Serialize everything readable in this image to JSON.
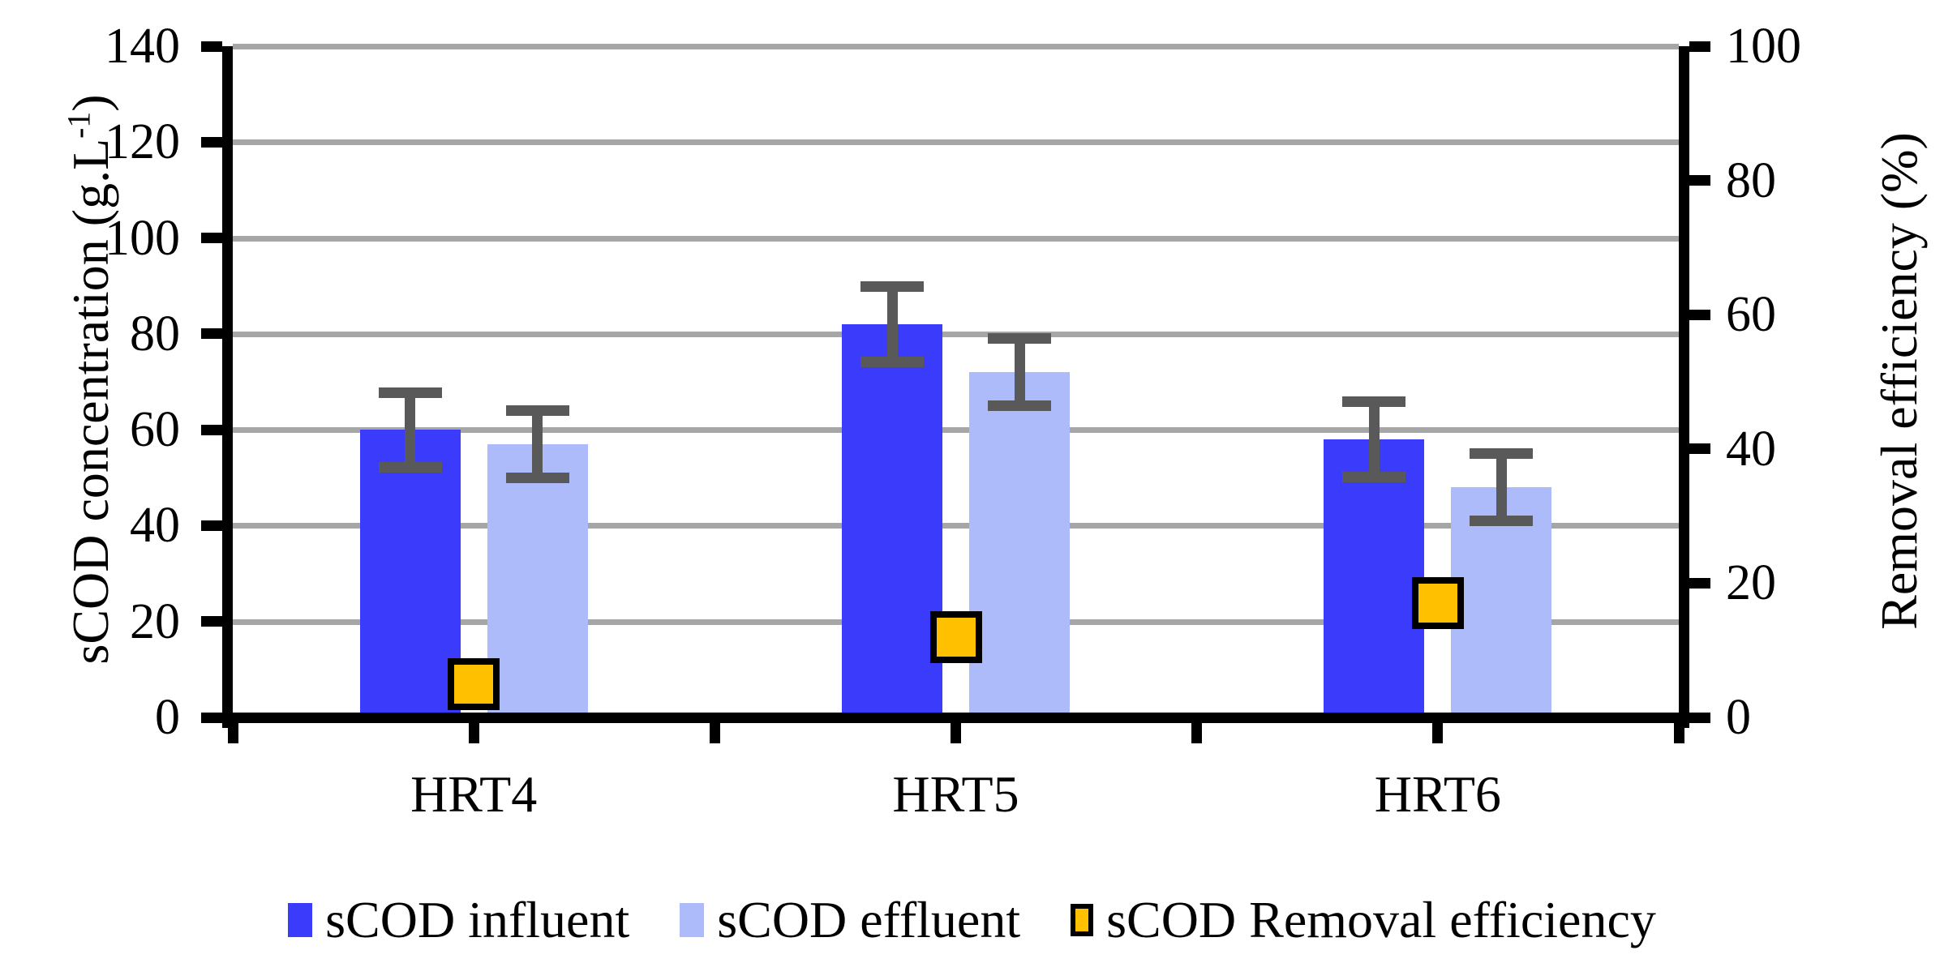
{
  "chart_data": {
    "type": "bar",
    "title": "",
    "categories": [
      "HRT4",
      "HRT5",
      "HRT6"
    ],
    "series": [
      {
        "name": "sCOD influent",
        "render": "bar",
        "axis": "left",
        "color": "#3B3BFB",
        "values": [
          60,
          82,
          58
        ],
        "error": [
          7.8,
          7.8,
          7.8
        ]
      },
      {
        "name": "sCOD effluent",
        "render": "bar",
        "axis": "left",
        "color": "#AEBBFA",
        "values": [
          57,
          72,
          48
        ],
        "error": [
          7,
          7,
          7
        ]
      },
      {
        "name": "sCOD Removal efficiency",
        "render": "marker",
        "axis": "right",
        "color": "#FFC000",
        "border_color": "#000000",
        "values": [
          5,
          12,
          17
        ]
      }
    ],
    "left_axis": {
      "label": "sCOD concentration (g.L⁻¹)",
      "label_prefix": "sCOD concentration (g.L",
      "label_sup": "-1",
      "label_suffix": ")",
      "min": 0,
      "max": 140,
      "step": 20,
      "ticks": [
        0,
        20,
        40,
        60,
        80,
        100,
        120,
        140
      ]
    },
    "right_axis": {
      "label": "Removal efficiency (%)",
      "min": 0,
      "max": 100,
      "step": 20,
      "ticks": [
        0,
        20,
        40,
        60,
        80,
        100
      ]
    },
    "grid": true,
    "gridline_color": "#A6A6A6",
    "error_bar_color": "#595959",
    "legend_position": "bottom"
  }
}
